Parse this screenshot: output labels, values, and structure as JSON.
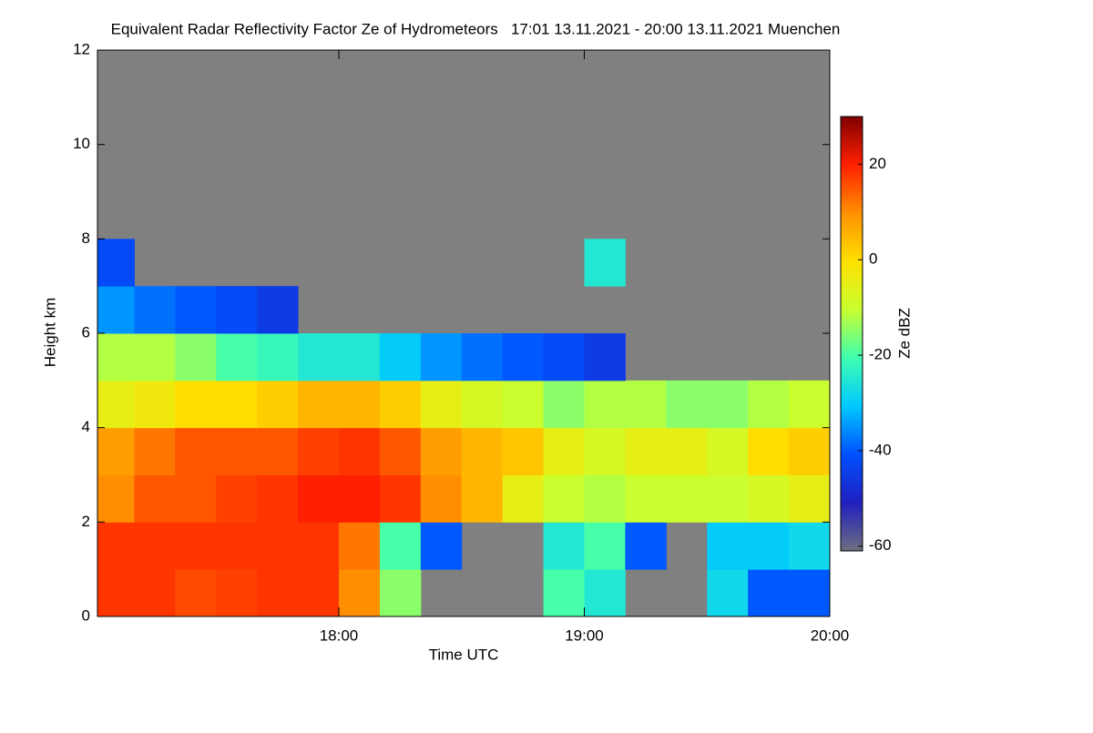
{
  "chart_data": {
    "type": "heatmap",
    "title": "Equivalent Radar Reflectivity Factor Ze of Hydrometeors   17:01 13.11.2021 - 20:00 13.11.2021 Muenchen",
    "xlabel": "Time UTC",
    "ylabel": "Height km",
    "colorbar_label": "Ze dBZ",
    "xlim": [
      1021,
      1200
    ],
    "ylim": [
      0,
      12
    ],
    "xticks": [
      {
        "value": 1080,
        "label": "18:00"
      },
      {
        "value": 1140,
        "label": "19:00"
      },
      {
        "value": 1200,
        "label": "20:00"
      }
    ],
    "yticks": [
      0,
      2,
      4,
      6,
      8,
      10,
      12
    ],
    "xbins": [
      1021,
      1030,
      1040,
      1050,
      1060,
      1070,
      1080,
      1090,
      1100,
      1110,
      1120,
      1130,
      1140,
      1150,
      1160,
      1170,
      1180,
      1190,
      1200
    ],
    "ybins": [
      0,
      1,
      2,
      3,
      4,
      5,
      6,
      7,
      8,
      9,
      10,
      11,
      12
    ],
    "z": [
      [
        18,
        18,
        16,
        17,
        18,
        18,
        10,
        -15,
        null,
        null,
        null,
        -20,
        -25,
        null,
        null,
        -28,
        -40,
        -40
      ],
      [
        18,
        18,
        18,
        18,
        18,
        18,
        12,
        -20,
        -40,
        null,
        null,
        -25,
        -20,
        -40,
        null,
        -30,
        -30,
        -28
      ],
      [
        10,
        15,
        15,
        17,
        18,
        20,
        20,
        18,
        10,
        5,
        -5,
        -10,
        -12,
        -10,
        -10,
        -10,
        -8,
        -5
      ],
      [
        8,
        12,
        15,
        15,
        15,
        17,
        18,
        15,
        8,
        5,
        3,
        -5,
        -8,
        -5,
        -5,
        -8,
        0,
        2
      ],
      [
        -5,
        -3,
        0,
        0,
        2,
        5,
        5,
        2,
        -5,
        -8,
        -10,
        -15,
        -12,
        -12,
        -15,
        -15,
        -12,
        -10
      ],
      [
        -12,
        -12,
        -15,
        -20,
        -22,
        -25,
        -25,
        -30,
        -35,
        -38,
        -40,
        -42,
        -45,
        null,
        null,
        null,
        null,
        null
      ],
      [
        -35,
        -38,
        -40,
        -42,
        -45,
        null,
        null,
        null,
        null,
        null,
        null,
        null,
        null,
        null,
        null,
        null,
        null,
        null
      ],
      [
        -42,
        null,
        null,
        null,
        null,
        null,
        null,
        null,
        null,
        null,
        null,
        null,
        -25,
        null,
        null,
        null,
        null,
        null
      ],
      [
        null,
        null,
        null,
        null,
        null,
        null,
        null,
        null,
        null,
        null,
        null,
        null,
        null,
        null,
        null,
        null,
        null,
        null
      ],
      [
        null,
        null,
        null,
        null,
        null,
        null,
        null,
        null,
        null,
        null,
        null,
        null,
        null,
        null,
        null,
        null,
        null,
        null
      ],
      [
        null,
        null,
        null,
        null,
        null,
        null,
        null,
        null,
        null,
        null,
        null,
        null,
        null,
        null,
        null,
        null,
        null,
        null
      ],
      [
        null,
        null,
        null,
        null,
        null,
        null,
        null,
        null,
        null,
        null,
        null,
        null,
        null,
        null,
        null,
        null,
        null,
        null
      ]
    ],
    "zlim": [
      -61,
      30
    ],
    "zticks": [
      20,
      0,
      -20,
      -40,
      -60
    ],
    "colormap": [
      "#6e6e80",
      "#2020c0",
      "#0050ff",
      "#00c8ff",
      "#40ffb0",
      "#c8ff30",
      "#ffe000",
      "#ff9000",
      "#ff2000",
      "#800000"
    ],
    "missing_color": "#808080"
  }
}
